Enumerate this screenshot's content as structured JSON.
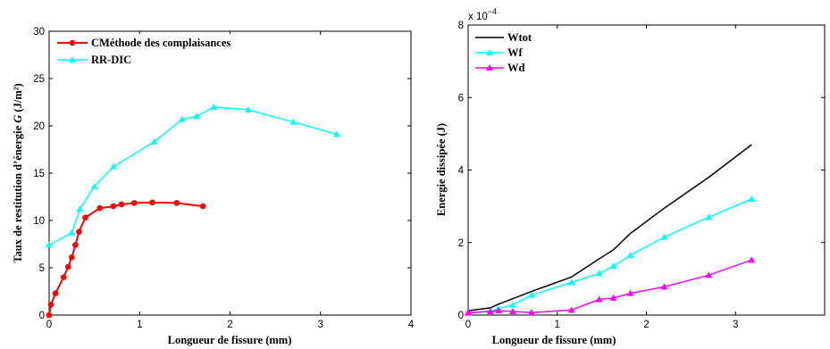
{
  "chart_data": [
    {
      "type": "line",
      "xlabel": "Longueur de fissure (mm)",
      "ylabel_prefix": "Taux de restitution d’énergie ",
      "ylabel_symbol": "G",
      "ylabel_unit": " (J/m²)",
      "xlim": [
        0,
        4
      ],
      "ylim": [
        0,
        30
      ],
      "xticks": [
        "0",
        "1",
        "2",
        "3",
        "4"
      ],
      "yticks": [
        "0",
        "5",
        "10",
        "15",
        "20",
        "25",
        "30"
      ],
      "grid": false,
      "legend_position": "top-left",
      "series": [
        {
          "name": "CMéthode des complaisances",
          "color": "#ff0000",
          "marker": "circle",
          "x": [
            0.0,
            0.02,
            0.07,
            0.16,
            0.21,
            0.25,
            0.29,
            0.33,
            0.4,
            0.56,
            0.71,
            0.8,
            0.94,
            1.14,
            1.41,
            1.7
          ],
          "y": [
            0.0,
            1.1,
            2.3,
            4.0,
            5.1,
            6.1,
            7.4,
            8.8,
            10.3,
            11.3,
            11.5,
            11.7,
            11.85,
            11.9,
            11.85,
            11.5
          ]
        },
        {
          "name": "RR-DIC",
          "color": "#00ffff",
          "marker": "triangle",
          "x": [
            0.0,
            0.25,
            0.34,
            0.5,
            0.71,
            1.16,
            1.47,
            1.63,
            1.82,
            2.2,
            2.7,
            3.18
          ],
          "y": [
            7.4,
            8.7,
            11.2,
            13.6,
            15.7,
            18.3,
            20.7,
            21.0,
            22.0,
            21.7,
            20.4,
            19.1
          ]
        }
      ]
    },
    {
      "type": "line",
      "xlabel": "Longueur de fissure (mm)",
      "ylabel": "Energie dissipée (J)",
      "multiplier_base": "x 10",
      "multiplier_exponent": "−4",
      "xlim": [
        0,
        4
      ],
      "ylim": [
        0,
        8
      ],
      "xticks": [
        "0",
        "1",
        "2",
        "3"
      ],
      "yticks": [
        "0",
        "2",
        "4",
        "6",
        "8"
      ],
      "grid": false,
      "legend_position": "top-left",
      "series": [
        {
          "name": "Wtot",
          "color": "#000000",
          "marker": "none",
          "x": [
            0.0,
            0.25,
            0.34,
            0.5,
            0.71,
            1.16,
            1.47,
            1.63,
            1.82,
            2.2,
            2.7,
            3.18
          ],
          "y": [
            0.12,
            0.2,
            0.3,
            0.45,
            0.65,
            1.05,
            1.55,
            1.8,
            2.25,
            2.95,
            3.8,
            4.7
          ]
        },
        {
          "name": "Wf",
          "color": "#00ffff",
          "marker": "triangle",
          "x": [
            0.0,
            0.25,
            0.34,
            0.5,
            0.71,
            1.16,
            1.47,
            1.63,
            1.82,
            2.2,
            2.7,
            3.18
          ],
          "y": [
            0.05,
            0.1,
            0.18,
            0.28,
            0.55,
            0.9,
            1.15,
            1.35,
            1.65,
            2.15,
            2.7,
            3.2
          ]
        },
        {
          "name": "Wd",
          "color": "#ff00ff",
          "marker": "triangle",
          "x": [
            0.0,
            0.25,
            0.34,
            0.5,
            0.71,
            1.16,
            1.47,
            1.63,
            1.82,
            2.2,
            2.7,
            3.18
          ],
          "y": [
            0.07,
            0.1,
            0.12,
            0.1,
            0.07,
            0.14,
            0.43,
            0.47,
            0.6,
            0.78,
            1.1,
            1.52
          ]
        }
      ]
    }
  ]
}
